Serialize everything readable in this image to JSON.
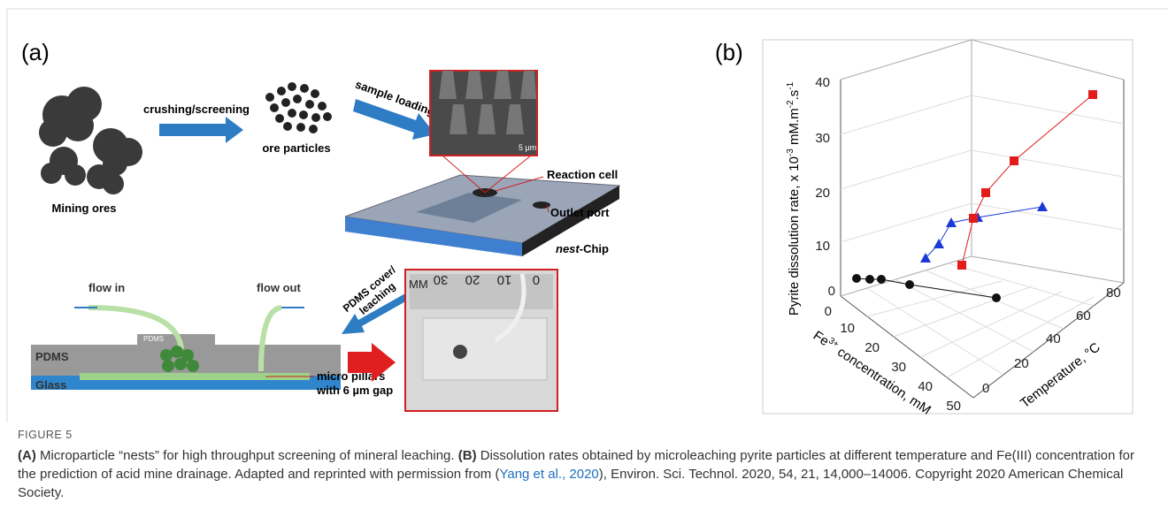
{
  "panel_a": {
    "label": "(a)",
    "steps": {
      "crushing": "crushing/screening",
      "loading": "sample loading",
      "cover_line1": "PDMS cover/",
      "cover_line2": "leaching"
    },
    "labels": {
      "mining_ores": "Mining ores",
      "ore_particles": "ore particles",
      "scale_bar": "5 µm",
      "reaction_cell": "Reaction cell",
      "outlet_port": "Outlet port",
      "chip_italic": "nest",
      "chip_rest": "-Chip",
      "flow_in": "flow in",
      "flow_out": "flow out",
      "pdms_cover": "PDMS",
      "pdms": "PDMS",
      "glass": "Glass",
      "pillars_line1": "micro pillars",
      "pillars_line2": "with 6 µm gap"
    },
    "ruler": {
      "unit": "MM",
      "marks": [
        30,
        20,
        10,
        0
      ]
    }
  },
  "panel_b": {
    "label": "(b)",
    "z_axis": {
      "title": "Pyrite dissolution rate, x 10",
      "exp1": "-3",
      "unit1": " mM.m",
      "exp2": "-2",
      "unit2": ".s",
      "exp3": "-1",
      "ticks": [
        0,
        10,
        20,
        30,
        40
      ]
    },
    "x_axis": {
      "title_pre": "Fe",
      "sup": "3+",
      "title_post": " concentration, mM",
      "ticks": [
        0,
        10,
        20,
        30,
        40,
        50
      ]
    },
    "y_axis": {
      "title": "Temperature, °C",
      "ticks": [
        0,
        20,
        40,
        60,
        80
      ]
    }
  },
  "caption": {
    "label": "FIGURE 5",
    "a_label": "(A)",
    "a_text": "Microparticle “nests” for high throughput screening of mineral leaching.",
    "b_label": "(B)",
    "b_text": "Dissolution rates obtained by microleaching pyrite particles at different temperature and Fe(III) concentration for the prediction of acid mine drainage. Adapted and reprinted with permission from (",
    "citation": "Yang et al., 2020",
    "tail": "), Environ. Sci. Technol. 2020, 54, 21, 14,000–14006. Copyright 2020 American Chemical Society."
  }
}
